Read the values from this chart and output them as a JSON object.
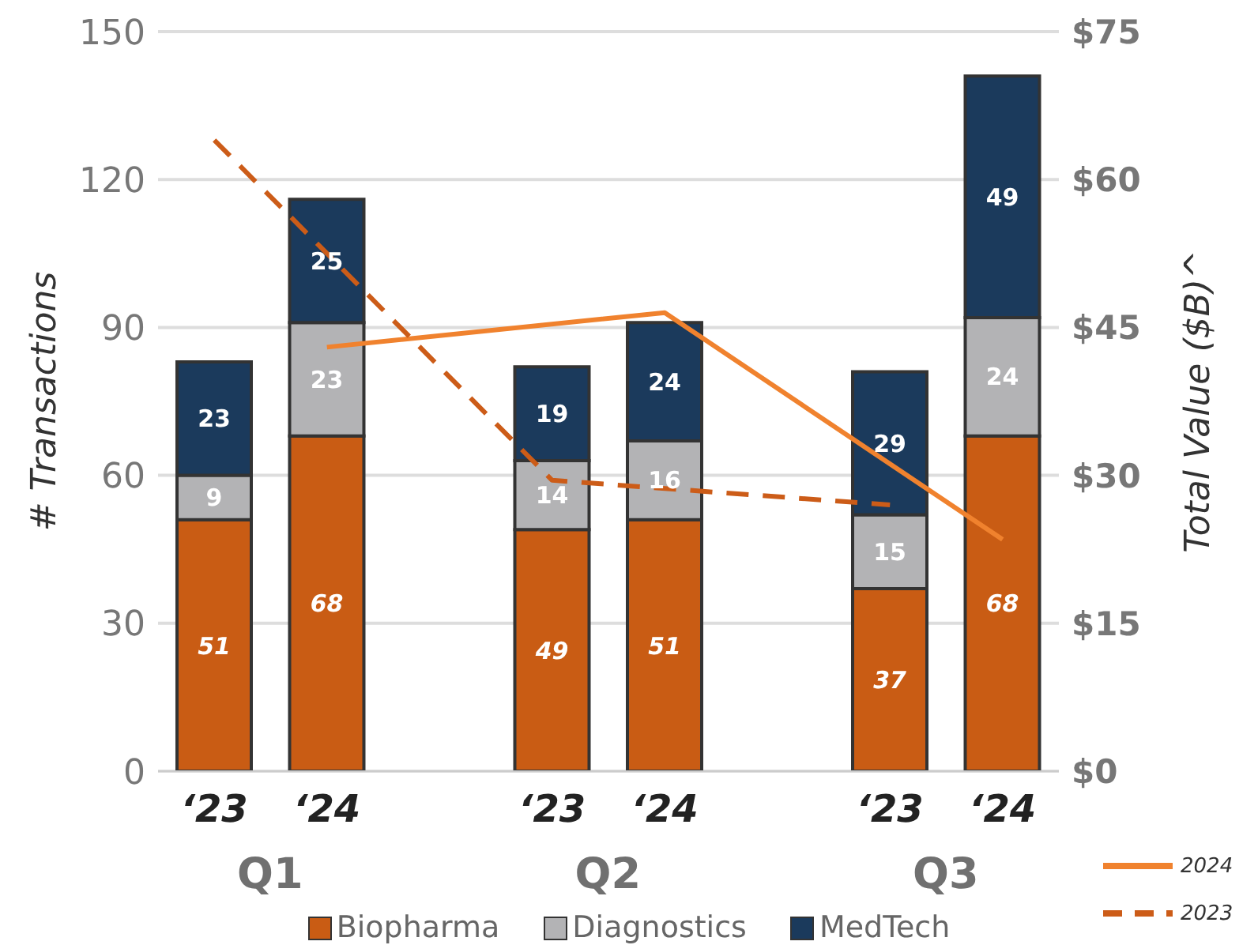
{
  "chart_data": {
    "type": "bar",
    "stacked": true,
    "ylabel": "# Transactions",
    "y2label": "Total Value ($B)^",
    "categories": [
      "‘23",
      "‘24",
      null,
      "‘23",
      "‘24",
      null,
      "‘23",
      "‘24"
    ],
    "annotations": [
      "Q1",
      "Q2",
      "Q3"
    ],
    "series": [
      {
        "name": "Biopharma",
        "color": "#c95c14",
        "values": [
          51,
          68,
          null,
          49,
          51,
          null,
          37,
          68
        ],
        "value_labels": [
          "51",
          "68",
          null,
          "49",
          "51",
          null,
          "37",
          "68"
        ]
      },
      {
        "name": "Diagnostics",
        "color": "#b3b3b5",
        "values": [
          9,
          23,
          null,
          14,
          16,
          null,
          15,
          24
        ],
        "value_labels": [
          "9",
          "23",
          null,
          "14",
          "16",
          null,
          "15",
          "24"
        ]
      },
      {
        "name": "MedTech",
        "color": "#1b3a5c",
        "values": [
          23,
          25,
          null,
          19,
          24,
          null,
          29,
          49
        ],
        "value_labels": [
          "23",
          "25",
          null,
          "19",
          "24",
          null,
          "29",
          "49"
        ]
      },
      {
        "name": "2024",
        "type": "line",
        "axis": "y2",
        "color": "#f0822e",
        "line_style": "solid",
        "values": [
          null,
          43,
          null,
          null,
          46.5,
          null,
          null,
          23.5
        ]
      },
      {
        "name": "2023",
        "type": "line",
        "axis": "y2",
        "color": "#cc5c18",
        "line_style": "dashed",
        "values": [
          64,
          null,
          null,
          29.5,
          null,
          null,
          27,
          null
        ]
      }
    ],
    "ylim": [
      0,
      150
    ],
    "yticks": [
      0,
      30,
      60,
      90,
      120,
      150
    ],
    "y2lim": [
      0,
      75
    ],
    "y2ticks": [
      {
        "value": 0,
        "label": "$0"
      },
      {
        "value": 15,
        "label": "$15"
      },
      {
        "value": 30,
        "label": "$30"
      },
      {
        "value": 45,
        "label": "$45"
      },
      {
        "value": 60,
        "label": "$60"
      },
      {
        "value": 75,
        "label": "$75"
      }
    ],
    "grid": "y",
    "legend": "bottom",
    "marker": "none"
  }
}
